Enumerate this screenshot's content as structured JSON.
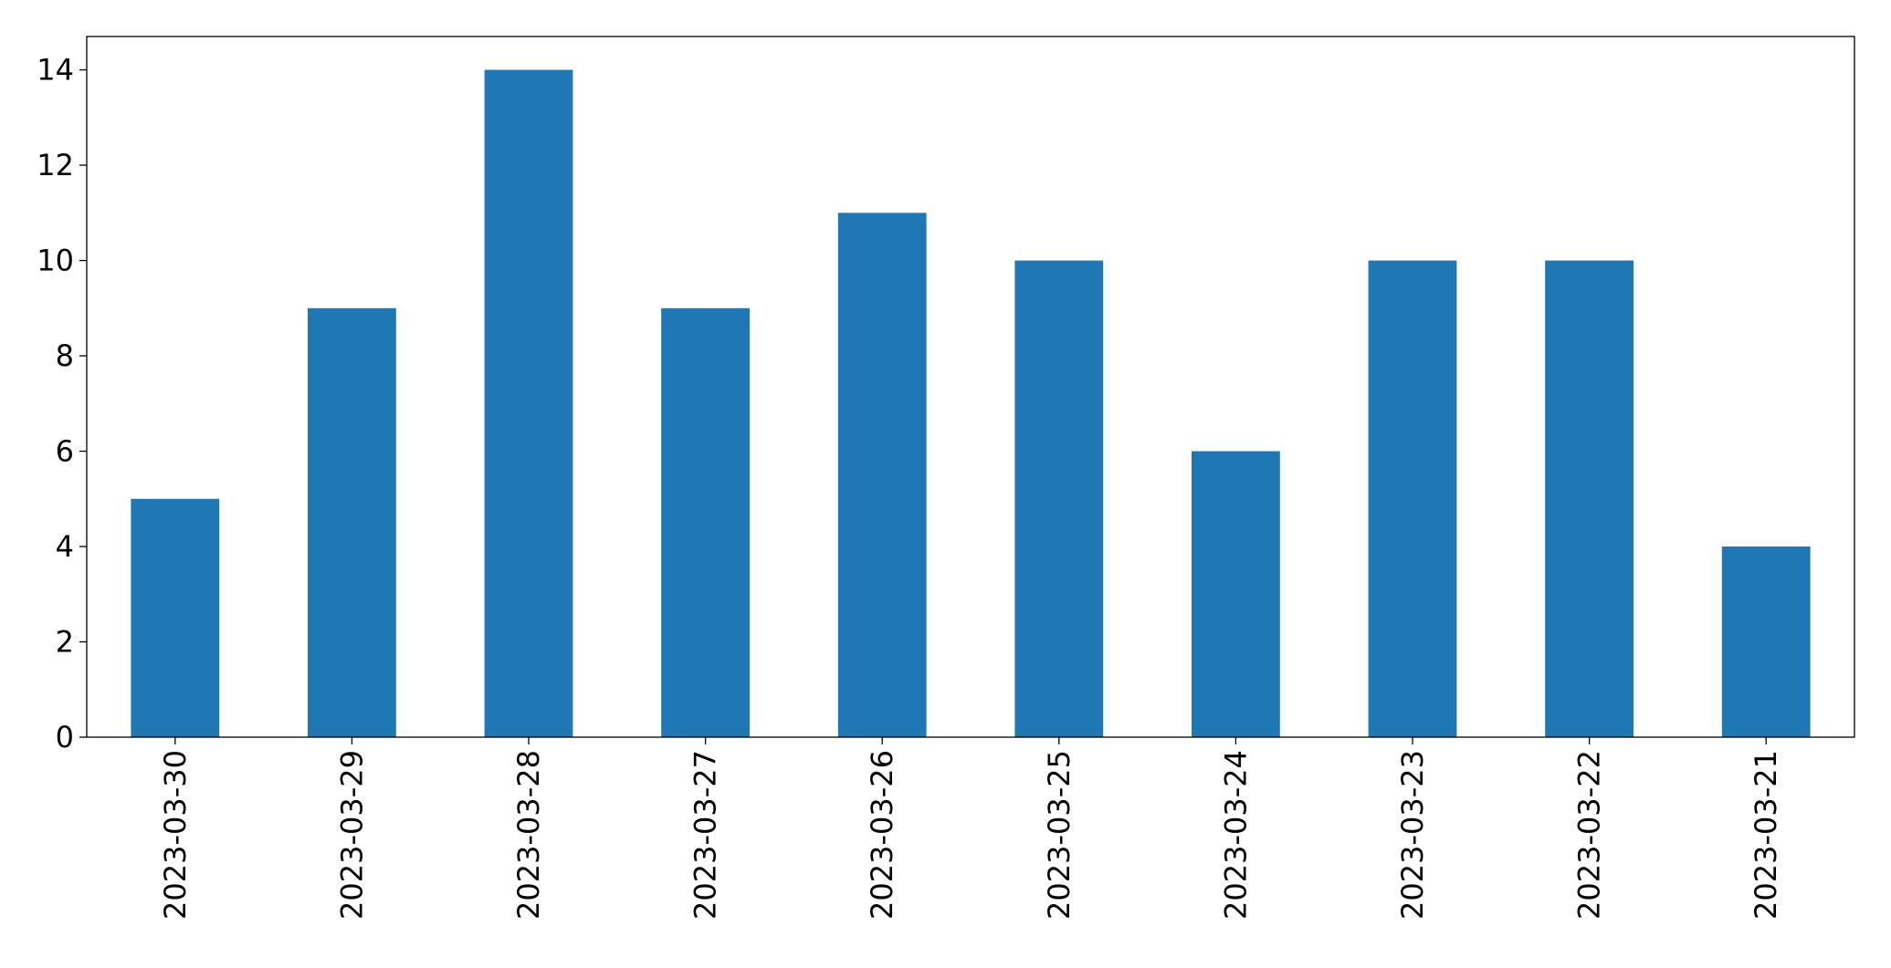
{
  "chart_data": {
    "type": "bar",
    "categories": [
      "2023-03-30",
      "2023-03-29",
      "2023-03-28",
      "2023-03-27",
      "2023-03-26",
      "2023-03-25",
      "2023-03-24",
      "2023-03-23",
      "2023-03-22",
      "2023-03-21"
    ],
    "values": [
      5,
      9,
      14,
      9,
      11,
      10,
      6,
      10,
      10,
      4
    ],
    "color": "#1f77b4",
    "ylim": [
      0,
      14.7
    ],
    "yticks": [
      0,
      2,
      4,
      6,
      8,
      10,
      12,
      14
    ],
    "grid": false
  }
}
